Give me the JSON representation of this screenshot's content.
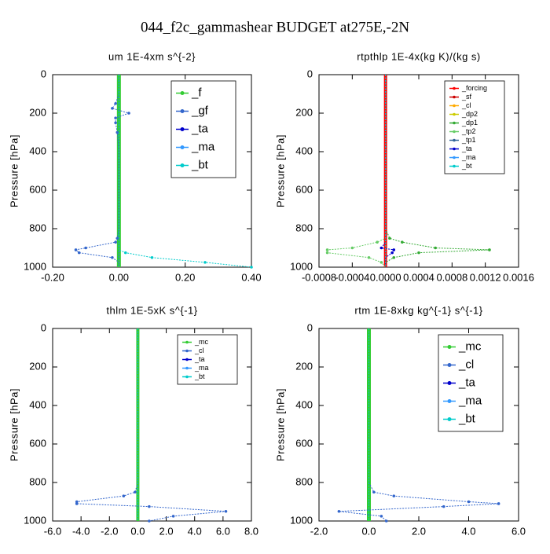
{
  "title": "044_f2c_gammashear  BUDGET at275E,-2N",
  "chart_data": [
    {
      "type": "line",
      "title": "um   1E-4xm s^{-2}",
      "ylabel": "Pressure [hPa]",
      "xlim": [
        -0.2,
        0.4
      ],
      "xticks": [
        {
          "value": -0.2,
          "label": "-0.20"
        },
        {
          "value": 0,
          "label": "0.00"
        },
        {
          "value": 0.2,
          "label": "0.20"
        },
        {
          "value": 0.4,
          "label": "0.40"
        }
      ],
      "ylim": [
        1000,
        0
      ],
      "yticks": [
        0,
        200,
        400,
        600,
        800,
        1000
      ],
      "legend": "upper right",
      "y": [
        0,
        100,
        150,
        175,
        200,
        225,
        250,
        300,
        400,
        500,
        600,
        700,
        800,
        850,
        870,
        900,
        910,
        925,
        950,
        975,
        1000
      ],
      "series": [
        {
          "name": "_f",
          "color": "#33cc33",
          "values": [
            0,
            0,
            0,
            0,
            0,
            0,
            0,
            0,
            0,
            0,
            0,
            0,
            0,
            0,
            0,
            0,
            0,
            0,
            0,
            0,
            0
          ]
        },
        {
          "name": "_gf",
          "color": "#3366cc",
          "values": [
            0,
            0,
            -0.01,
            -0.02,
            0.03,
            -0.01,
            -0.01,
            -0.005,
            0,
            0,
            0,
            0,
            0,
            -0.005,
            -0.01,
            -0.1,
            -0.13,
            -0.12,
            -0.02,
            0,
            0
          ]
        },
        {
          "name": "_ta",
          "color": "#0000cc",
          "values": [
            0,
            0,
            0,
            0,
            0,
            0,
            0,
            0,
            0,
            0,
            0,
            0,
            0,
            0,
            0,
            0,
            0,
            0,
            0,
            0,
            0
          ]
        },
        {
          "name": "_ma",
          "color": "#3399ff",
          "values": [
            0,
            0,
            0,
            0,
            0,
            0,
            0,
            0,
            0,
            0,
            0,
            0,
            0,
            0,
            0,
            0,
            0,
            0,
            0,
            0,
            0
          ]
        },
        {
          "name": "_bt",
          "color": "#00cccc",
          "values": [
            0,
            0,
            0,
            0,
            0,
            0,
            0,
            0,
            0,
            0,
            0,
            0,
            0,
            0,
            0,
            0,
            0,
            0.02,
            0.1,
            0.26,
            0.4
          ]
        }
      ]
    },
    {
      "type": "line",
      "title": "rtpthlp   1E-4x(kg K)/(kg s)",
      "ylabel": "Pressure [hPa]",
      "xlim": [
        -0.0008,
        0.0016
      ],
      "xticks": [
        {
          "value": -0.0008,
          "label": "-0.0008"
        },
        {
          "value": -0.0004,
          "label": "-0.0004"
        },
        {
          "value": 0,
          "label": "0.0000"
        },
        {
          "value": 0.0004,
          "label": "0.0004"
        },
        {
          "value": 0.0008,
          "label": "0.0008"
        },
        {
          "value": 0.0012,
          "label": "0.0012"
        },
        {
          "value": 0.0016,
          "label": "0.0016"
        }
      ],
      "ylim": [
        1000,
        0
      ],
      "yticks": [
        0,
        200,
        400,
        600,
        800,
        1000
      ],
      "legend": "upper right",
      "y": [
        0,
        200,
        400,
        600,
        800,
        850,
        870,
        900,
        910,
        925,
        950,
        975,
        1000
      ],
      "series": [
        {
          "name": "_forcing",
          "color": "#ff0000",
          "values": [
            0,
            0,
            0,
            0,
            0,
            0,
            0,
            0,
            0,
            0,
            0,
            0,
            0
          ]
        },
        {
          "name": "_sf",
          "color": "#cc0000",
          "values": [
            0,
            0,
            0,
            0,
            0,
            0,
            0,
            0,
            0,
            0,
            0,
            0,
            0
          ]
        },
        {
          "name": "_cl",
          "color": "#ffaa00",
          "values": [
            0,
            0,
            0,
            0,
            0,
            0,
            0,
            0,
            0,
            0,
            0,
            0,
            0
          ]
        },
        {
          "name": "_dp2",
          "color": "#cccc00",
          "values": [
            0,
            0,
            0,
            0,
            0,
            0,
            0,
            0,
            0,
            0,
            0,
            0,
            0
          ]
        },
        {
          "name": "_dp1",
          "color": "#33aa33",
          "values": [
            0,
            0,
            0,
            0,
            0,
            5e-05,
            0.0002,
            0.0006,
            0.00125,
            0.0004,
            0.0001,
            0,
            0
          ]
        },
        {
          "name": "_tp2",
          "color": "#66cc66",
          "values": [
            0,
            0,
            0,
            0,
            0,
            0,
            -0.0001,
            -0.0004,
            -0.0007,
            -0.0007,
            -0.0002,
            -5e-05,
            0
          ]
        },
        {
          "name": "_tp1",
          "color": "#336699",
          "values": [
            0,
            0,
            0,
            0,
            0,
            0,
            0,
            0,
            0,
            0,
            0,
            0,
            0
          ]
        },
        {
          "name": "_ta",
          "color": "#0000cc",
          "values": [
            0,
            0,
            0,
            0,
            0,
            0,
            0,
            -5e-05,
            0.0001,
            8e-05,
            0,
            0,
            0
          ]
        },
        {
          "name": "_ma",
          "color": "#3399ff",
          "values": [
            0,
            0,
            0,
            0,
            0,
            0,
            0,
            0,
            0,
            0,
            0,
            0,
            0
          ]
        },
        {
          "name": "_bt",
          "color": "#00cccc",
          "values": [
            0,
            0,
            0,
            0,
            0,
            0,
            0,
            0,
            0,
            0,
            0,
            0,
            0
          ]
        }
      ]
    },
    {
      "type": "line",
      "title": "thlm   1E-5xK s^{-1}",
      "ylabel": "Pressure [hPa]",
      "xlim": [
        -6,
        8
      ],
      "xticks": [
        {
          "value": -6,
          "label": "-6.0"
        },
        {
          "value": -4,
          "label": "-4.0"
        },
        {
          "value": -2,
          "label": "-2.0"
        },
        {
          "value": 0,
          "label": "0.0"
        },
        {
          "value": 2,
          "label": "2.0"
        },
        {
          "value": 4,
          "label": "4.0"
        },
        {
          "value": 6,
          "label": "6.0"
        },
        {
          "value": 8,
          "label": "8.0"
        }
      ],
      "ylim": [
        1000,
        0
      ],
      "yticks": [
        0,
        200,
        400,
        600,
        800,
        1000
      ],
      "legend": "upper right",
      "y": [
        0,
        200,
        400,
        600,
        800,
        850,
        870,
        900,
        910,
        925,
        950,
        975,
        1000
      ],
      "series": [
        {
          "name": "_mc",
          "color": "#33cc33",
          "values": [
            0,
            0,
            0,
            0,
            0,
            0,
            0,
            0,
            0,
            0,
            0,
            0,
            0
          ]
        },
        {
          "name": "_cl",
          "color": "#3366cc",
          "values": [
            0,
            0,
            0,
            0,
            0,
            -0.2,
            -1.0,
            -4.3,
            -4.3,
            0.8,
            6.2,
            2.5,
            0.8
          ]
        },
        {
          "name": "_ta",
          "color": "#0000cc",
          "values": [
            0,
            0,
            0,
            0,
            0,
            0,
            0,
            0,
            0,
            0,
            0,
            0,
            0
          ]
        },
        {
          "name": "_ma",
          "color": "#3399ff",
          "values": [
            0,
            0,
            0,
            0,
            0,
            0,
            0,
            0,
            0,
            0,
            0,
            0,
            0
          ]
        },
        {
          "name": "_bt",
          "color": "#00cccc",
          "values": [
            0,
            0,
            0,
            0,
            0,
            0,
            0,
            0,
            0,
            0,
            0,
            0,
            0
          ]
        }
      ]
    },
    {
      "type": "line",
      "title": "rtm   1E-8xkg kg^{-1} s^{-1}",
      "ylabel": "Pressure [hPa]",
      "xlim": [
        -2,
        6
      ],
      "xticks": [
        {
          "value": -2,
          "label": "-2.0"
        },
        {
          "value": 0,
          "label": "0.0"
        },
        {
          "value": 2,
          "label": "2.0"
        },
        {
          "value": 4,
          "label": "4.0"
        },
        {
          "value": 6,
          "label": "6.0"
        }
      ],
      "ylim": [
        1000,
        0
      ],
      "yticks": [
        0,
        200,
        400,
        600,
        800,
        1000
      ],
      "legend": "upper right",
      "y": [
        0,
        200,
        400,
        600,
        800,
        850,
        870,
        900,
        910,
        925,
        950,
        975,
        1000
      ],
      "series": [
        {
          "name": "_mc",
          "color": "#33cc33",
          "values": [
            0,
            0,
            0,
            0,
            0,
            0,
            0,
            0,
            0,
            0,
            0,
            0,
            0
          ]
        },
        {
          "name": "_cl",
          "color": "#3366cc",
          "values": [
            0,
            0,
            0,
            0,
            0,
            0.2,
            1.0,
            4.0,
            5.2,
            3.0,
            -1.2,
            0.5,
            0.7
          ]
        },
        {
          "name": "_ta",
          "color": "#0000cc",
          "values": [
            0,
            0,
            0,
            0,
            0,
            0,
            0,
            0,
            0,
            0,
            0,
            0,
            0
          ]
        },
        {
          "name": "_ma",
          "color": "#3399ff",
          "values": [
            0,
            0,
            0,
            0,
            0,
            0,
            0,
            0,
            0,
            0,
            0,
            0,
            0
          ]
        },
        {
          "name": "_bt",
          "color": "#00cccc",
          "values": [
            0,
            0,
            0,
            0,
            0,
            0,
            0,
            0,
            0,
            0,
            0,
            0,
            0
          ]
        }
      ]
    }
  ]
}
